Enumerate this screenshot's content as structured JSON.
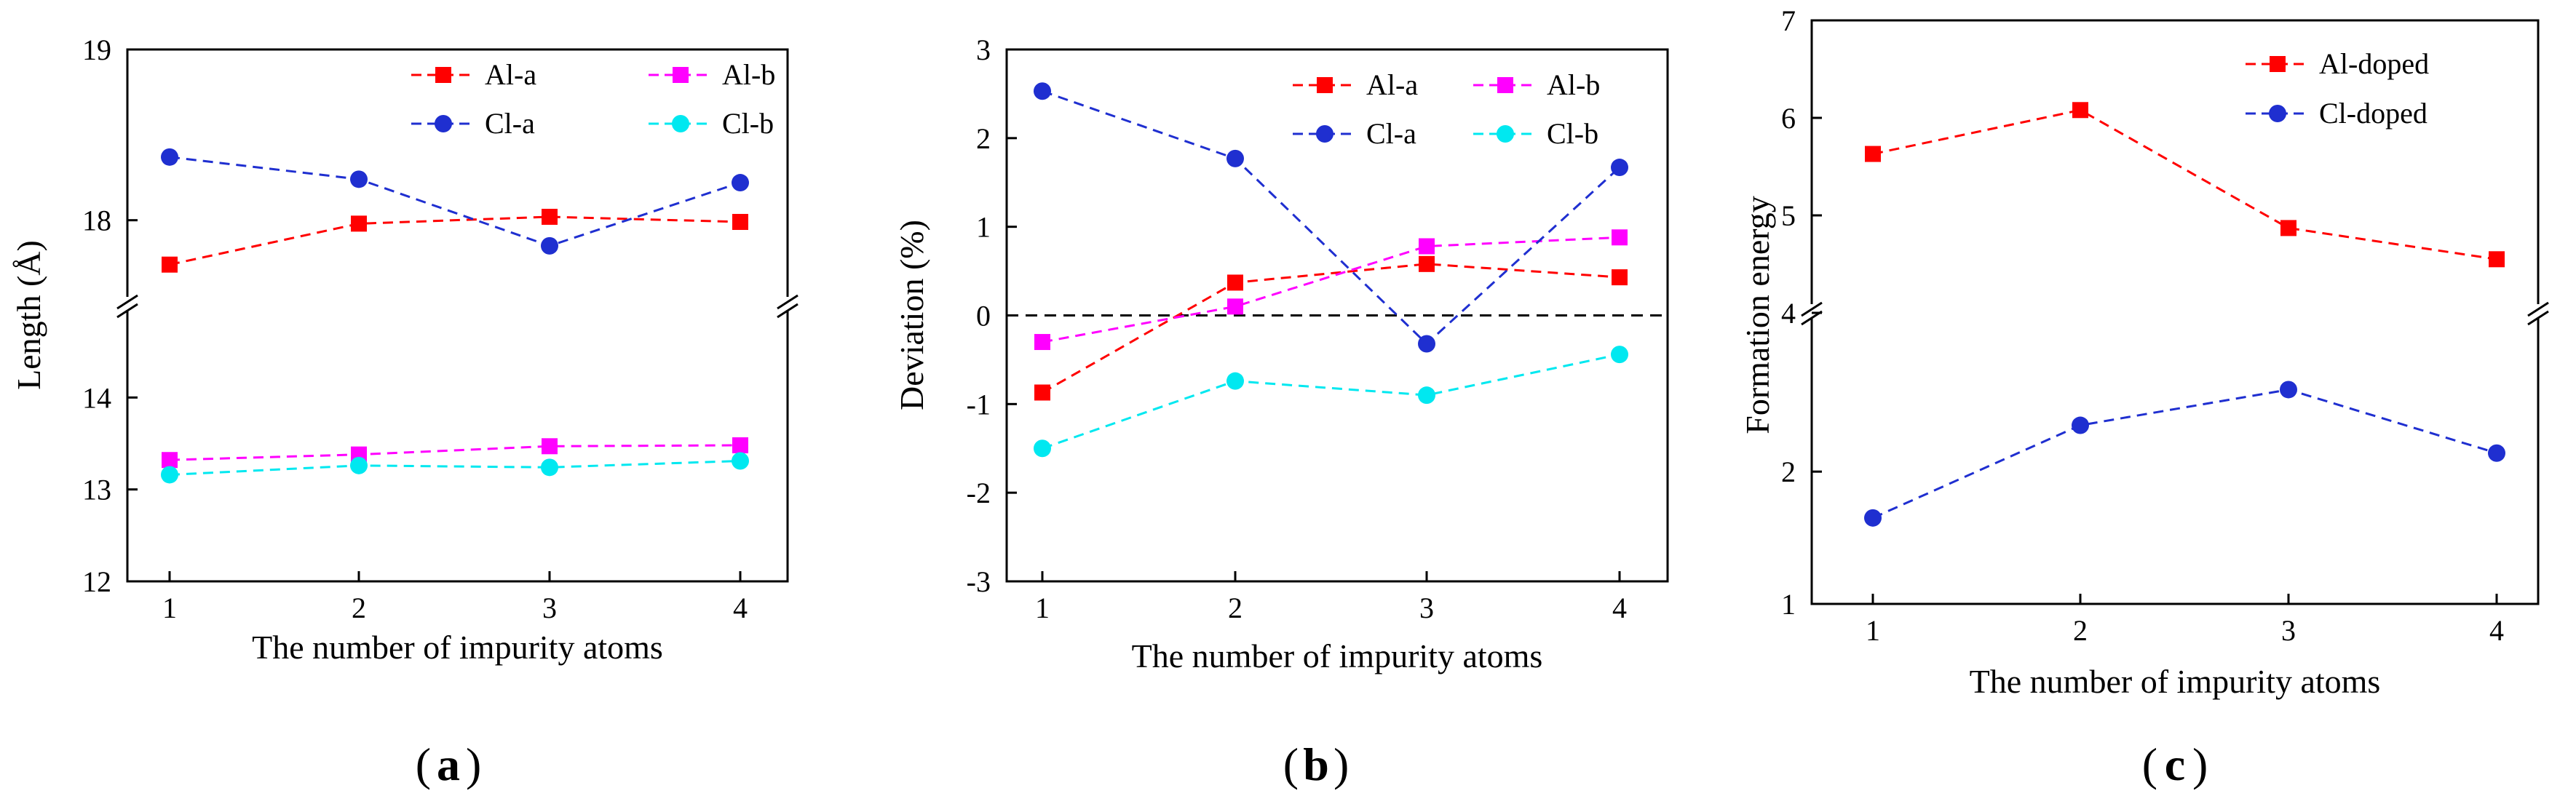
{
  "chart_data": [
    {
      "type": "line",
      "panel_label": {
        "open": "(",
        "letter": "a",
        "close": ")"
      },
      "xlabel": "The number of impurity atoms",
      "ylabel": "Length (Å)",
      "categories": [
        1,
        2,
        3,
        4
      ],
      "x_tick_labels": [
        "1",
        "2",
        "3",
        "4"
      ],
      "axis_break": true,
      "segments": [
        {
          "ylim": [
            12,
            15
          ],
          "ticks": [
            "12",
            "13",
            "14"
          ]
        },
        {
          "ylim": [
            17.5,
            19
          ],
          "ticks": [
            "18",
            "19"
          ]
        }
      ],
      "legend_position": "top-right",
      "series": [
        {
          "name": "Al-a",
          "color": "#ff0000",
          "marker": "square",
          "values": [
            17.74,
            17.98,
            18.02,
            17.99
          ]
        },
        {
          "name": "Al-b",
          "color": "#ff00ff",
          "marker": "square",
          "values": [
            13.32,
            13.38,
            13.47,
            13.48
          ]
        },
        {
          "name": "Cl-a",
          "color": "#1f2fd0",
          "marker": "circle",
          "values": [
            18.37,
            18.24,
            17.85,
            18.22
          ]
        },
        {
          "name": "Cl-b",
          "color": "#00e8f0",
          "marker": "circle",
          "values": [
            13.16,
            13.26,
            13.24,
            13.31
          ]
        }
      ]
    },
    {
      "type": "line",
      "panel_label": {
        "open": "(",
        "letter": "b",
        "close": ")"
      },
      "xlabel": "The number of impurity atoms",
      "ylabel": "Deviation (%)",
      "categories": [
        1,
        2,
        3,
        4
      ],
      "x_tick_labels": [
        "1",
        "2",
        "3",
        "4"
      ],
      "ylim": [
        -3,
        3
      ],
      "y_ticks": [
        "-3",
        "-2",
        "-1",
        "0",
        "1",
        "2",
        "3"
      ],
      "reference_line": 0,
      "legend_position": "top-right",
      "series": [
        {
          "name": "Al-a",
          "color": "#ff0000",
          "marker": "square",
          "values": [
            -0.87,
            0.37,
            0.58,
            0.43
          ]
        },
        {
          "name": "Al-b",
          "color": "#ff00ff",
          "marker": "square",
          "values": [
            -0.3,
            0.1,
            0.78,
            0.88
          ]
        },
        {
          "name": "Cl-a",
          "color": "#1f2fd0",
          "marker": "circle",
          "values": [
            2.53,
            1.77,
            -0.32,
            1.67
          ]
        },
        {
          "name": "Cl-b",
          "color": "#00e8f0",
          "marker": "circle",
          "values": [
            -1.5,
            -0.74,
            -0.9,
            -0.44
          ]
        }
      ]
    },
    {
      "type": "line",
      "panel_label": {
        "open": "(",
        "letter": "c",
        "close": ")"
      },
      "xlabel": "The number of impurity atoms",
      "ylabel": "Formation energy",
      "categories": [
        1,
        2,
        3,
        4
      ],
      "x_tick_labels": [
        "1",
        "2",
        "3",
        "4"
      ],
      "axis_break": true,
      "segments": [
        {
          "ylim": [
            1,
            3.2
          ],
          "ticks": [
            "1",
            "2"
          ]
        },
        {
          "ylim": [
            4,
            7
          ],
          "ticks": [
            "4",
            "5",
            "6",
            "7"
          ]
        }
      ],
      "legend_position": "top-right",
      "series": [
        {
          "name": "Al-doped",
          "color": "#ff0000",
          "marker": "square",
          "values": [
            5.63,
            6.08,
            4.87,
            4.55
          ]
        },
        {
          "name": "Cl-doped",
          "color": "#1f2fd0",
          "marker": "circle",
          "values": [
            1.65,
            2.35,
            2.62,
            2.14
          ]
        }
      ]
    }
  ]
}
